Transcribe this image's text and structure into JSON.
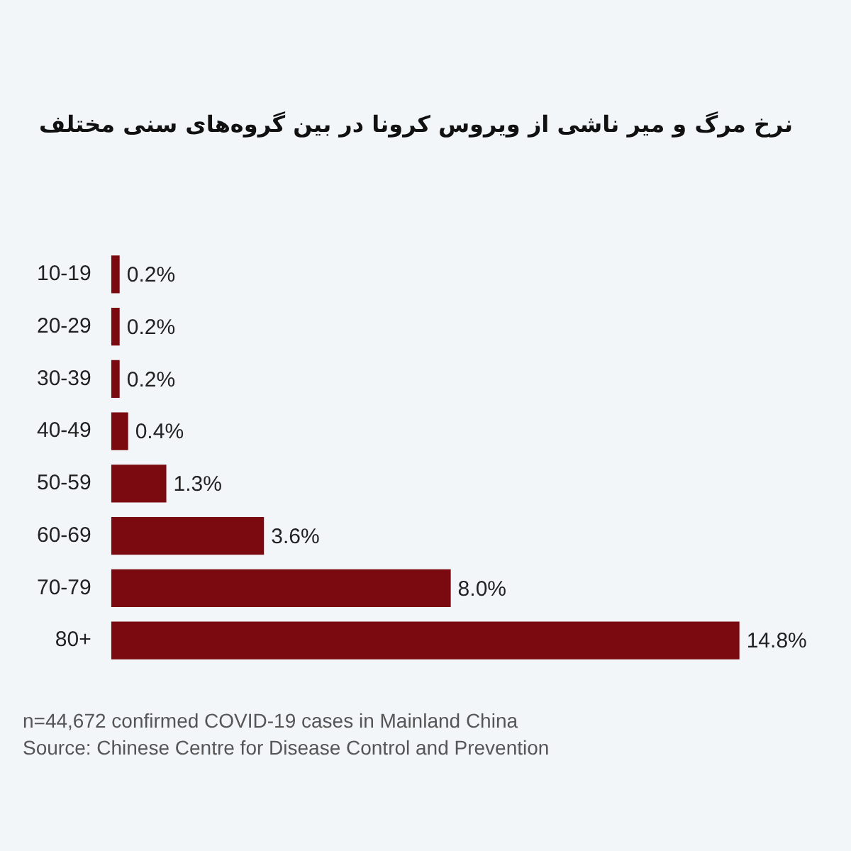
{
  "chart_data": {
    "type": "bar",
    "orientation": "horizontal",
    "title": "نرخ مرگ و میر ناشی از ویروس کرونا در بین گروه‌های سنی مختلف",
    "categories": [
      "10-19",
      "20-29",
      "30-39",
      "40-49",
      "50-59",
      "60-69",
      "70-79",
      "80+"
    ],
    "values": [
      0.2,
      0.2,
      0.2,
      0.4,
      1.3,
      3.6,
      8.0,
      14.8
    ],
    "value_labels": [
      "0.2%",
      "0.2%",
      "0.2%",
      "0.4%",
      "1.3%",
      "3.6%",
      "8.0%",
      "14.8%"
    ],
    "color": "#7b0a10",
    "grid": false,
    "legend": false,
    "annotations": [
      "n=44,672 confirmed COVID-19 cases in Mainland China",
      "Source: Chinese Centre for Disease Control and Prevention"
    ]
  }
}
